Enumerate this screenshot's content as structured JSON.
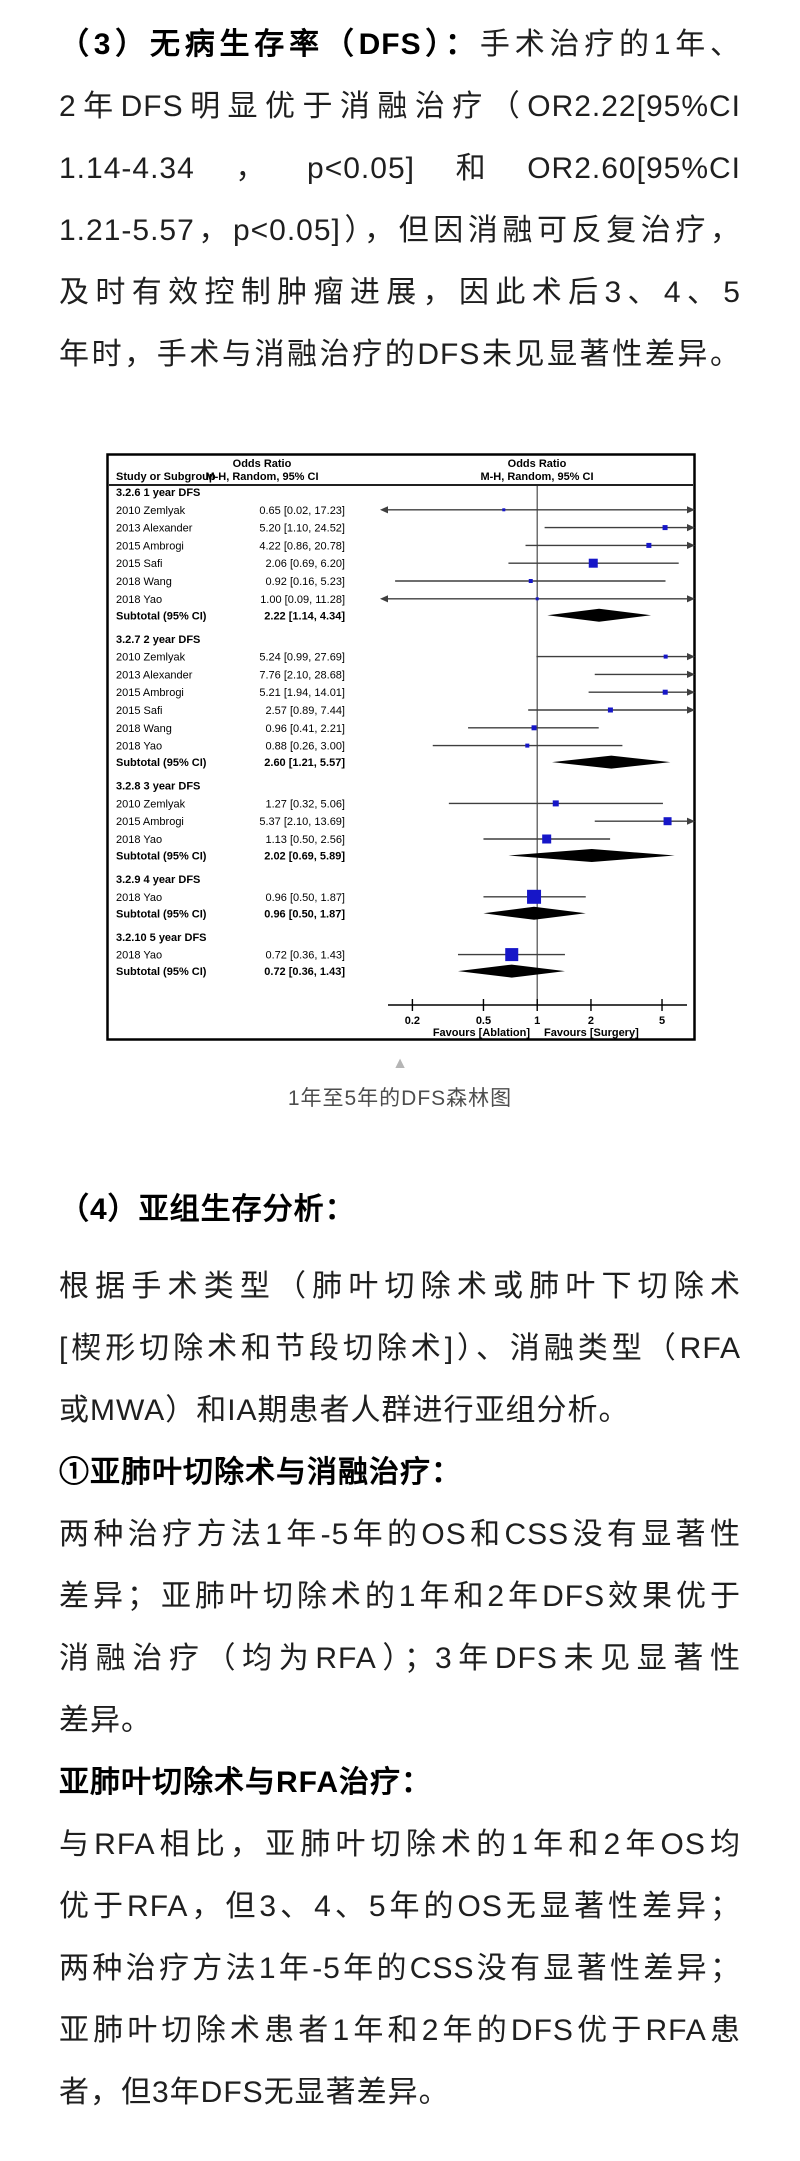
{
  "page": {
    "background": "#ffffff",
    "body_text_color": "#1f1f1f",
    "heading_color": "#000000"
  },
  "figure": {
    "caption": "1年至5年的DFS森林图",
    "collapse_icon": "▲"
  },
  "article": {
    "blocks": [
      {
        "name": "para-dfs-results",
        "slot": "article-top",
        "lines": [
          {
            "segments": [
              {
                "text": "（3）无病生存率（DFS）：",
                "bold": true
              },
              {
                "text": "手术治疗的1年、",
                "bold": false
              }
            ],
            "justify": true
          },
          {
            "segments": [
              {
                "text": "2年DFS明显优于消融治疗（OR2.22[95%CI",
                "bold": false
              }
            ],
            "justify": true
          },
          {
            "segments": [
              {
                "text": "1.14-4.34，p<0.05]和OR2.60[95%CI",
                "bold": false
              }
            ],
            "justify": true
          },
          {
            "segments": [
              {
                "text": "1.21-5.57，p<0.05]），但因消融可反复治疗，",
                "bold": false
              }
            ],
            "justify": true
          },
          {
            "segments": [
              {
                "text": "及时有效控制肿瘤进展，因此术后3、4、5",
                "bold": false
              }
            ],
            "justify": true
          },
          {
            "segments": [
              {
                "text": "年时，手术与消融治疗的DFS未见显著性差异。",
                "bold": false
              }
            ],
            "justify": true
          }
        ]
      },
      {
        "name": "heading-subgroup-analysis",
        "slot": "article-bottom",
        "lines": [
          {
            "segments": [
              {
                "text": "（4）亚组生存分析：",
                "bold": true
              }
            ],
            "justify": false,
            "heading": true,
            "major": true
          }
        ]
      },
      {
        "name": "para-subgroup-intro",
        "slot": "article-bottom",
        "lines": [
          {
            "segments": [
              {
                "text": "根据手术类型（肺叶切除术或肺叶下切除术",
                "bold": false
              }
            ],
            "justify": true
          },
          {
            "segments": [
              {
                "text": "[楔形切除术和节段切除术]）、消融类型（RFA",
                "bold": false
              }
            ],
            "justify": true
          },
          {
            "segments": [
              {
                "text": "或MWA）和IA期患者人群进行亚组分析。",
                "bold": false
              }
            ],
            "justify": false
          }
        ]
      },
      {
        "name": "heading-sublobar-vs-ablation",
        "slot": "article-bottom",
        "lines": [
          {
            "segments": [
              {
                "text": "①亚肺叶切除术与消融治疗：",
                "bold": true
              }
            ],
            "justify": false,
            "heading": true
          }
        ]
      },
      {
        "name": "para-sublobar-vs-ablation",
        "slot": "article-bottom",
        "lines": [
          {
            "segments": [
              {
                "text": "两种治疗方法1年-5年的OS和CSS没有显著性",
                "bold": false
              }
            ],
            "justify": true
          },
          {
            "segments": [
              {
                "text": "差异；亚肺叶切除术的1年和2年DFS效果优于",
                "bold": false
              }
            ],
            "justify": true
          },
          {
            "segments": [
              {
                "text": "消融治疗（均为RFA）；3年DFS未见显著性",
                "bold": false
              }
            ],
            "justify": true
          },
          {
            "segments": [
              {
                "text": "差异。",
                "bold": false
              }
            ],
            "justify": false
          }
        ]
      },
      {
        "name": "heading-sublobar-vs-rfa",
        "slot": "article-bottom",
        "lines": [
          {
            "segments": [
              {
                "text": "亚肺叶切除术与RFA治疗：",
                "bold": true
              }
            ],
            "justify": false,
            "heading": true
          }
        ]
      },
      {
        "name": "para-sublobar-vs-rfa",
        "slot": "article-bottom",
        "lines": [
          {
            "segments": [
              {
                "text": "与RFA相比，亚肺叶切除术的1年和2年OS均",
                "bold": false
              }
            ],
            "justify": true
          },
          {
            "segments": [
              {
                "text": "优于RFA，但3、4、5年的OS无显著性差异；",
                "bold": false
              }
            ],
            "justify": true
          },
          {
            "segments": [
              {
                "text": "两种治疗方法1年-5年的CSS没有显著性差异；",
                "bold": false
              }
            ],
            "justify": true
          },
          {
            "segments": [
              {
                "text": "亚肺叶切除术患者1年和2年的DFS优于RFA患",
                "bold": false
              }
            ],
            "justify": true
          },
          {
            "segments": [
              {
                "text": "者，但3年DFS无显著差异。",
                "bold": false
              }
            ],
            "justify": false
          }
        ]
      }
    ]
  },
  "chart_data": {
    "type": "forest",
    "effect_measure": "Odds Ratio",
    "model": "M-H, Random, 95% CI",
    "columns": {
      "study": "Study or Subgroup",
      "estimate_header": [
        "Odds Ratio",
        "M-H, Random, 95% CI"
      ],
      "plot_header": [
        "Odds Ratio",
        "M-H, Random, 95% CI"
      ]
    },
    "x_axis": {
      "scale": "log",
      "ticks": [
        0.2,
        0.5,
        1,
        2,
        5
      ],
      "tick_labels": [
        "0.2",
        "0.5",
        "1",
        "2",
        "5"
      ],
      "range": [
        0.146,
        6.9
      ]
    },
    "footer": {
      "left": "Favours [Ablation]",
      "right": "Favours [Surgery]"
    },
    "style": {
      "square_color": "#1616c8",
      "diamond_color": "#000000",
      "line_color": "#3f3f3f",
      "axis_color": "#000000",
      "null_line_color": "#595959",
      "border_color": "#000000"
    },
    "groups": [
      {
        "label": "3.2.6 1 year DFS",
        "studies": [
          {
            "study": "2010 Zemlyak",
            "or": 0.65,
            "ci_low": 0.02,
            "ci_high": 17.23,
            "label": "0.65 [0.02, 17.23]",
            "square": 3
          },
          {
            "study": "2013 Alexander",
            "or": 5.2,
            "ci_low": 1.1,
            "ci_high": 24.52,
            "label": "5.20 [1.10, 24.52]",
            "square": 5
          },
          {
            "study": "2015 Ambrogi",
            "or": 4.22,
            "ci_low": 0.86,
            "ci_high": 20.78,
            "label": "4.22 [0.86, 20.78]",
            "square": 5
          },
          {
            "study": "2015 Safi",
            "or": 2.06,
            "ci_low": 0.69,
            "ci_high": 6.2,
            "label": "2.06 [0.69, 6.20]",
            "square": 9
          },
          {
            "study": "2018 Wang",
            "or": 0.92,
            "ci_low": 0.16,
            "ci_high": 5.23,
            "label": "0.92 [0.16, 5.23]",
            "square": 4
          },
          {
            "study": "2018 Yao",
            "or": 1.0,
            "ci_low": 0.09,
            "ci_high": 11.28,
            "label": "1.00 [0.09, 11.28]",
            "square": 3
          }
        ],
        "subtotal": {
          "study": "Subtotal (95% CI)",
          "or": 2.22,
          "ci_low": 1.14,
          "ci_high": 4.34,
          "label": "2.22 [1.14, 4.34]"
        }
      },
      {
        "label": "3.2.7 2 year DFS",
        "studies": [
          {
            "study": "2010 Zemlyak",
            "or": 5.24,
            "ci_low": 0.99,
            "ci_high": 27.69,
            "label": "5.24 [0.99, 27.69]",
            "square": 4
          },
          {
            "study": "2013 Alexander",
            "or": 7.76,
            "ci_low": 2.1,
            "ci_high": 28.68,
            "label": "7.76 [2.10, 28.68]",
            "square": 4
          },
          {
            "study": "2015 Ambrogi",
            "or": 5.21,
            "ci_low": 1.94,
            "ci_high": 14.01,
            "label": "5.21 [1.94, 14.01]",
            "square": 5
          },
          {
            "study": "2015 Safi",
            "or": 2.57,
            "ci_low": 0.89,
            "ci_high": 7.44,
            "label": "2.57 [0.89, 7.44]",
            "square": 5
          },
          {
            "study": "2018 Wang",
            "or": 0.96,
            "ci_low": 0.41,
            "ci_high": 2.21,
            "label": "0.96 [0.41, 2.21]",
            "square": 5
          },
          {
            "study": "2018 Yao",
            "or": 0.88,
            "ci_low": 0.26,
            "ci_high": 3.0,
            "label": "0.88 [0.26, 3.00]",
            "square": 4
          }
        ],
        "subtotal": {
          "study": "Subtotal (95% CI)",
          "or": 2.6,
          "ci_low": 1.21,
          "ci_high": 5.57,
          "label": "2.60 [1.21, 5.57]"
        }
      },
      {
        "label": "3.2.8 3 year DFS",
        "studies": [
          {
            "study": "2010 Zemlyak",
            "or": 1.27,
            "ci_low": 0.32,
            "ci_high": 5.06,
            "label": "1.27 [0.32, 5.06]",
            "square": 6
          },
          {
            "study": "2015 Ambrogi",
            "or": 5.37,
            "ci_low": 2.1,
            "ci_high": 13.69,
            "label": "5.37 [2.10, 13.69]",
            "square": 8
          },
          {
            "study": "2018 Yao",
            "or": 1.13,
            "ci_low": 0.5,
            "ci_high": 2.56,
            "label": "1.13 [0.50, 2.56]",
            "square": 9
          }
        ],
        "subtotal": {
          "study": "Subtotal (95% CI)",
          "or": 2.02,
          "ci_low": 0.69,
          "ci_high": 5.89,
          "label": "2.02 [0.69, 5.89]"
        }
      },
      {
        "label": "3.2.9 4 year DFS",
        "studies": [
          {
            "study": "2018 Yao",
            "or": 0.96,
            "ci_low": 0.5,
            "ci_high": 1.87,
            "label": "0.96 [0.50, 1.87]",
            "square": 14
          }
        ],
        "subtotal": {
          "study": "Subtotal (95% CI)",
          "or": 0.96,
          "ci_low": 0.5,
          "ci_high": 1.87,
          "label": "0.96 [0.50, 1.87]"
        }
      },
      {
        "label": "3.2.10 5 year DFS",
        "studies": [
          {
            "study": "2018 Yao",
            "or": 0.72,
            "ci_low": 0.36,
            "ci_high": 1.43,
            "label": "0.72 [0.36, 1.43]",
            "square": 13
          }
        ],
        "subtotal": {
          "study": "Subtotal (95% CI)",
          "or": 0.72,
          "ci_low": 0.36,
          "ci_high": 1.43,
          "label": "0.72 [0.36, 1.43]"
        }
      }
    ]
  }
}
